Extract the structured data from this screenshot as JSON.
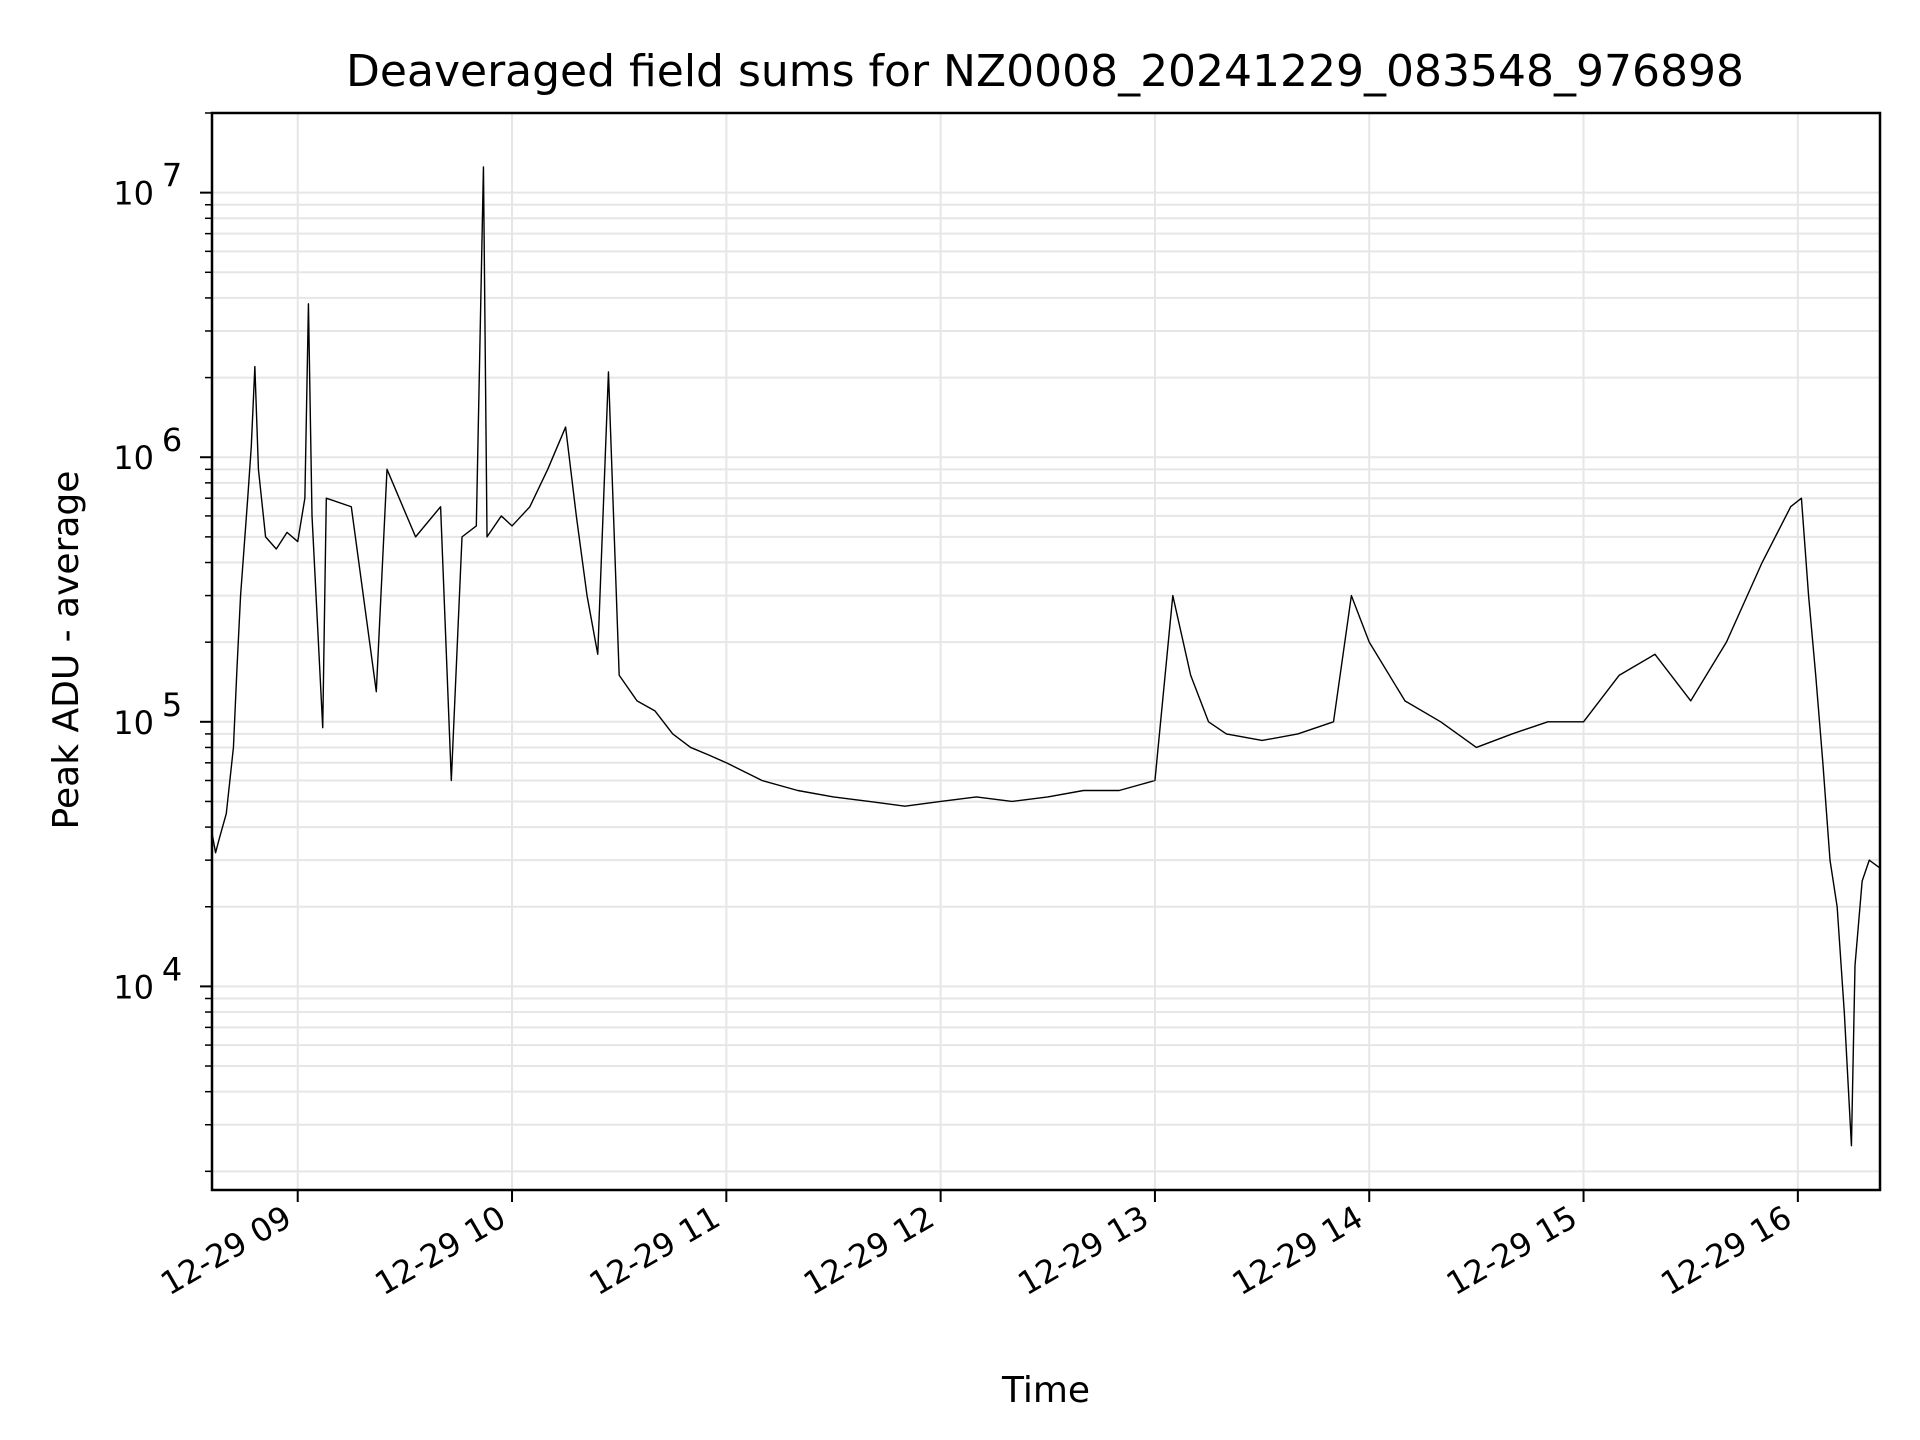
{
  "chart_data": {
    "type": "line",
    "title": "Deaveraged field sums for NZ0008_20241229_083548_976898",
    "xlabel": "Time",
    "ylabel": "Peak ADU - average",
    "y_scale": "log",
    "grid": "major and minor",
    "line_color": "#000000",
    "x_range": [
      "2024-12-29 08:36",
      "2024-12-29 16:23"
    ],
    "ylim": [
      1700,
      20000000
    ],
    "x_ticks": [
      {
        "value": "2024-12-29 09:00",
        "label": "12-29 09"
      },
      {
        "value": "2024-12-29 10:00",
        "label": "12-29 10"
      },
      {
        "value": "2024-12-29 11:00",
        "label": "12-29 11"
      },
      {
        "value": "2024-12-29 12:00",
        "label": "12-29 12"
      },
      {
        "value": "2024-12-29 13:00",
        "label": "12-29 13"
      },
      {
        "value": "2024-12-29 14:00",
        "label": "12-29 14"
      },
      {
        "value": "2024-12-29 15:00",
        "label": "12-29 15"
      },
      {
        "value": "2024-12-29 16:00",
        "label": "12-29 16"
      }
    ],
    "y_ticks": [
      {
        "value": 10000,
        "base": "10",
        "exp": "4"
      },
      {
        "value": 100000,
        "base": "10",
        "exp": "5"
      },
      {
        "value": 1000000,
        "base": "10",
        "exp": "6"
      },
      {
        "value": 10000000,
        "base": "10",
        "exp": "7"
      }
    ],
    "series": [
      {
        "points": [
          [
            "2024-12-29 08:36",
            38000
          ],
          [
            "2024-12-29 08:37",
            32000
          ],
          [
            "2024-12-29 08:38",
            36000
          ],
          [
            "2024-12-29 08:40",
            45000
          ],
          [
            "2024-12-29 08:42",
            80000
          ],
          [
            "2024-12-29 08:43",
            160000
          ],
          [
            "2024-12-29 08:44",
            300000
          ],
          [
            "2024-12-29 08:46",
            700000
          ],
          [
            "2024-12-29 08:47",
            1100000
          ],
          [
            "2024-12-29 08:48",
            2200000
          ],
          [
            "2024-12-29 08:49",
            900000
          ],
          [
            "2024-12-29 08:51",
            500000
          ],
          [
            "2024-12-29 08:54",
            450000
          ],
          [
            "2024-12-29 08:57",
            520000
          ],
          [
            "2024-12-29 09:00",
            480000
          ],
          [
            "2024-12-29 09:02",
            700000
          ],
          [
            "2024-12-29 09:03",
            3800000
          ],
          [
            "2024-12-29 09:04",
            600000
          ],
          [
            "2024-12-29 09:07",
            95000
          ],
          [
            "2024-12-29 09:08",
            700000
          ],
          [
            "2024-12-29 09:15",
            650000
          ],
          [
            "2024-12-29 09:22",
            130000
          ],
          [
            "2024-12-29 09:25",
            900000
          ],
          [
            "2024-12-29 09:33",
            500000
          ],
          [
            "2024-12-29 09:40",
            650000
          ],
          [
            "2024-12-29 09:43",
            60000
          ],
          [
            "2024-12-29 09:46",
            500000
          ],
          [
            "2024-12-29 09:50",
            550000
          ],
          [
            "2024-12-29 09:52",
            12500000
          ],
          [
            "2024-12-29 09:53",
            500000
          ],
          [
            "2024-12-29 09:57",
            600000
          ],
          [
            "2024-12-29 10:00",
            550000
          ],
          [
            "2024-12-29 10:05",
            650000
          ],
          [
            "2024-12-29 10:10",
            900000
          ],
          [
            "2024-12-29 10:15",
            1300000
          ],
          [
            "2024-12-29 10:18",
            600000
          ],
          [
            "2024-12-29 10:21",
            300000
          ],
          [
            "2024-12-29 10:24",
            180000
          ],
          [
            "2024-12-29 10:27",
            2100000
          ],
          [
            "2024-12-29 10:30",
            150000
          ],
          [
            "2024-12-29 10:35",
            120000
          ],
          [
            "2024-12-29 10:40",
            110000
          ],
          [
            "2024-12-29 10:45",
            90000
          ],
          [
            "2024-12-29 10:50",
            80000
          ],
          [
            "2024-12-29 10:55",
            75000
          ],
          [
            "2024-12-29 11:00",
            70000
          ],
          [
            "2024-12-29 11:10",
            60000
          ],
          [
            "2024-12-29 11:20",
            55000
          ],
          [
            "2024-12-29 11:30",
            52000
          ],
          [
            "2024-12-29 11:40",
            50000
          ],
          [
            "2024-12-29 11:50",
            48000
          ],
          [
            "2024-12-29 12:00",
            50000
          ],
          [
            "2024-12-29 12:10",
            52000
          ],
          [
            "2024-12-29 12:20",
            50000
          ],
          [
            "2024-12-29 12:30",
            52000
          ],
          [
            "2024-12-29 12:40",
            55000
          ],
          [
            "2024-12-29 12:50",
            55000
          ],
          [
            "2024-12-29 13:00",
            60000
          ],
          [
            "2024-12-29 13:05",
            300000
          ],
          [
            "2024-12-29 13:10",
            150000
          ],
          [
            "2024-12-29 13:15",
            100000
          ],
          [
            "2024-12-29 13:20",
            90000
          ],
          [
            "2024-12-29 13:30",
            85000
          ],
          [
            "2024-12-29 13:40",
            90000
          ],
          [
            "2024-12-29 13:50",
            100000
          ],
          [
            "2024-12-29 13:55",
            300000
          ],
          [
            "2024-12-29 14:00",
            200000
          ],
          [
            "2024-12-29 14:10",
            120000
          ],
          [
            "2024-12-29 14:20",
            100000
          ],
          [
            "2024-12-29 14:30",
            80000
          ],
          [
            "2024-12-29 14:40",
            90000
          ],
          [
            "2024-12-29 14:50",
            100000
          ],
          [
            "2024-12-29 15:00",
            100000
          ],
          [
            "2024-12-29 15:10",
            150000
          ],
          [
            "2024-12-29 15:20",
            180000
          ],
          [
            "2024-12-29 15:30",
            120000
          ],
          [
            "2024-12-29 15:40",
            200000
          ],
          [
            "2024-12-29 15:50",
            400000
          ],
          [
            "2024-12-29 15:58",
            650000
          ],
          [
            "2024-12-29 16:01",
            700000
          ],
          [
            "2024-12-29 16:03",
            300000
          ],
          [
            "2024-12-29 16:05",
            150000
          ],
          [
            "2024-12-29 16:07",
            70000
          ],
          [
            "2024-12-29 16:09",
            30000
          ],
          [
            "2024-12-29 16:11",
            20000
          ],
          [
            "2024-12-29 16:13",
            8000
          ],
          [
            "2024-12-29 16:15",
            2500
          ],
          [
            "2024-12-29 16:16",
            12000
          ],
          [
            "2024-12-29 16:18",
            25000
          ],
          [
            "2024-12-29 16:20",
            30000
          ],
          [
            "2024-12-29 16:23",
            28000
          ]
        ]
      }
    ]
  }
}
